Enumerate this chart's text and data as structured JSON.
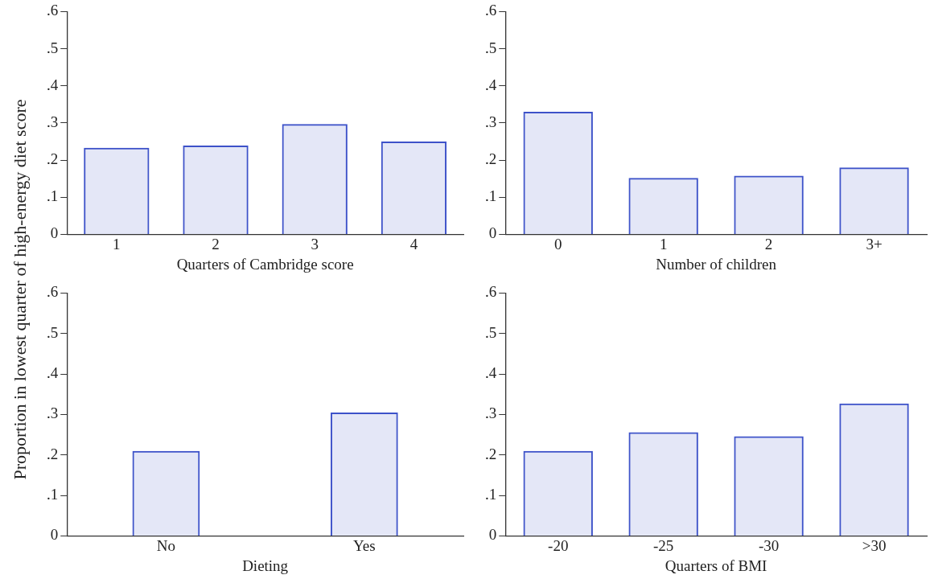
{
  "chart_data": [
    {
      "type": "bar",
      "ylabel": "Proportion in lowest quarter of high-energy diet score",
      "xlabel": "Quarters of Cambridge score",
      "categories": [
        "1",
        "2",
        "3",
        "4"
      ],
      "values": [
        0.233,
        0.239,
        0.297,
        0.25
      ],
      "color": "#3d52c9",
      "ylim": [
        0,
        0.6
      ],
      "yticks": [
        {
          "value": 0,
          "label": "0"
        },
        {
          "value": 0.1,
          "label": ".1"
        },
        {
          "value": 0.2,
          "label": ".2"
        },
        {
          "value": 0.3,
          "label": ".3"
        },
        {
          "value": 0.4,
          "label": ".4"
        },
        {
          "value": 0.5,
          "label": ".5"
        },
        {
          "value": 0.6,
          "label": ".6"
        }
      ]
    },
    {
      "type": "bar",
      "xlabel": "Number of children",
      "categories": [
        "0",
        "1",
        "2",
        "3+"
      ],
      "values": [
        0.33,
        0.152,
        0.158,
        0.18
      ],
      "color": "#3d52c9",
      "ylim": [
        0,
        0.6
      ],
      "yticks": [
        {
          "value": 0,
          "label": "0"
        },
        {
          "value": 0.1,
          "label": ".1"
        },
        {
          "value": 0.2,
          "label": ".2"
        },
        {
          "value": 0.3,
          "label": ".3"
        },
        {
          "value": 0.4,
          "label": ".4"
        },
        {
          "value": 0.5,
          "label": ".5"
        },
        {
          "value": 0.6,
          "label": ".6"
        }
      ]
    },
    {
      "type": "bar",
      "xlabel": "Dieting",
      "categories": [
        "No",
        "Yes"
      ],
      "values": [
        0.21,
        0.305
      ],
      "color": "#3d52c9",
      "ylim": [
        0,
        0.6
      ],
      "yticks": [
        {
          "value": 0,
          "label": "0"
        },
        {
          "value": 0.1,
          "label": ".1"
        },
        {
          "value": 0.2,
          "label": ".2"
        },
        {
          "value": 0.3,
          "label": ".3"
        },
        {
          "value": 0.4,
          "label": ".4"
        },
        {
          "value": 0.5,
          "label": ".5"
        },
        {
          "value": 0.6,
          "label": ".6"
        }
      ]
    },
    {
      "type": "bar",
      "xlabel": "Quarters of BMI",
      "categories": [
        "-20",
        "-25",
        "-30",
        ">30"
      ],
      "values": [
        0.21,
        0.256,
        0.246,
        0.327
      ],
      "color": "#3d52c9",
      "ylim": [
        0,
        0.6
      ],
      "yticks": [
        {
          "value": 0,
          "label": "0"
        },
        {
          "value": 0.1,
          "label": ".1"
        },
        {
          "value": 0.2,
          "label": ".2"
        },
        {
          "value": 0.3,
          "label": ".3"
        },
        {
          "value": 0.4,
          "label": ".4"
        },
        {
          "value": 0.5,
          "label": ".5"
        },
        {
          "value": 0.6,
          "label": ".6"
        }
      ]
    }
  ]
}
